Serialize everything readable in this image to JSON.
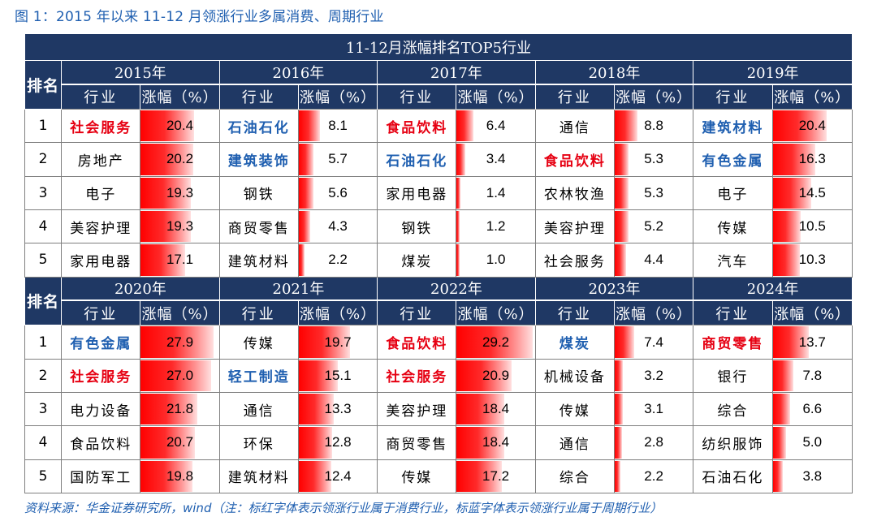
{
  "figure_title": "图 1：2015 年以来 11-12 月领涨行业多属消费、周期行业",
  "table_title": "11-12月涨幅排名TOP5行业",
  "rank_header": "排名",
  "col_industry": "行业",
  "col_change": "涨幅（%）",
  "bar_max": 30,
  "colors": {
    "header_bg": "#1f3864",
    "consumer": "#e60012",
    "cyclical": "#1f5fb0",
    "bar": "#ff0000"
  },
  "groups": [
    {
      "years": [
        {
          "year": "2015年",
          "rows": [
            {
              "rank": "1",
              "industry": "社会服务",
              "value": "20.4",
              "type": "red"
            },
            {
              "rank": "2",
              "industry": "房地产",
              "value": "20.2",
              "type": ""
            },
            {
              "rank": "3",
              "industry": "电子",
              "value": "19.3",
              "type": ""
            },
            {
              "rank": "4",
              "industry": "美容护理",
              "value": "19.3",
              "type": ""
            },
            {
              "rank": "5",
              "industry": "家用电器",
              "value": "17.1",
              "type": ""
            }
          ]
        },
        {
          "year": "2016年",
          "rows": [
            {
              "rank": "1",
              "industry": "石油石化",
              "value": "8.1",
              "type": "blue"
            },
            {
              "rank": "2",
              "industry": "建筑装饰",
              "value": "5.7",
              "type": "blue"
            },
            {
              "rank": "3",
              "industry": "钢铁",
              "value": "5.6",
              "type": ""
            },
            {
              "rank": "4",
              "industry": "商贸零售",
              "value": "4.3",
              "type": ""
            },
            {
              "rank": "5",
              "industry": "建筑材料",
              "value": "2.2",
              "type": ""
            }
          ]
        },
        {
          "year": "2017年",
          "rows": [
            {
              "rank": "1",
              "industry": "食品饮料",
              "value": "6.4",
              "type": "red"
            },
            {
              "rank": "2",
              "industry": "石油石化",
              "value": "3.4",
              "type": "blue"
            },
            {
              "rank": "3",
              "industry": "家用电器",
              "value": "1.4",
              "type": ""
            },
            {
              "rank": "4",
              "industry": "钢铁",
              "value": "1.2",
              "type": ""
            },
            {
              "rank": "5",
              "industry": "煤炭",
              "value": "1.0",
              "type": ""
            }
          ]
        },
        {
          "year": "2018年",
          "rows": [
            {
              "rank": "1",
              "industry": "通信",
              "value": "8.8",
              "type": ""
            },
            {
              "rank": "2",
              "industry": "食品饮料",
              "value": "5.3",
              "type": "red"
            },
            {
              "rank": "3",
              "industry": "农林牧渔",
              "value": "5.3",
              "type": ""
            },
            {
              "rank": "4",
              "industry": "美容护理",
              "value": "5.2",
              "type": ""
            },
            {
              "rank": "5",
              "industry": "社会服务",
              "value": "4.4",
              "type": ""
            }
          ]
        },
        {
          "year": "2019年",
          "rows": [
            {
              "rank": "1",
              "industry": "建筑材料",
              "value": "20.4",
              "type": "blue"
            },
            {
              "rank": "2",
              "industry": "有色金属",
              "value": "16.3",
              "type": "blue"
            },
            {
              "rank": "3",
              "industry": "电子",
              "value": "14.5",
              "type": ""
            },
            {
              "rank": "4",
              "industry": "传媒",
              "value": "10.5",
              "type": ""
            },
            {
              "rank": "5",
              "industry": "汽车",
              "value": "10.3",
              "type": ""
            }
          ]
        }
      ]
    },
    {
      "years": [
        {
          "year": "2020年",
          "rows": [
            {
              "rank": "1",
              "industry": "有色金属",
              "value": "27.9",
              "type": "blue"
            },
            {
              "rank": "2",
              "industry": "社会服务",
              "value": "27.0",
              "type": "red"
            },
            {
              "rank": "3",
              "industry": "电力设备",
              "value": "21.8",
              "type": ""
            },
            {
              "rank": "4",
              "industry": "食品饮料",
              "value": "20.7",
              "type": ""
            },
            {
              "rank": "5",
              "industry": "国防军工",
              "value": "19.8",
              "type": ""
            }
          ]
        },
        {
          "year": "2021年",
          "rows": [
            {
              "rank": "1",
              "industry": "传媒",
              "value": "19.7",
              "type": ""
            },
            {
              "rank": "2",
              "industry": "轻工制造",
              "value": "15.1",
              "type": "blue"
            },
            {
              "rank": "3",
              "industry": "通信",
              "value": "13.3",
              "type": ""
            },
            {
              "rank": "4",
              "industry": "环保",
              "value": "12.8",
              "type": ""
            },
            {
              "rank": "5",
              "industry": "建筑材料",
              "value": "12.4",
              "type": ""
            }
          ]
        },
        {
          "year": "2022年",
          "rows": [
            {
              "rank": "1",
              "industry": "食品饮料",
              "value": "29.2",
              "type": "red"
            },
            {
              "rank": "2",
              "industry": "社会服务",
              "value": "20.9",
              "type": "red"
            },
            {
              "rank": "3",
              "industry": "美容护理",
              "value": "18.4",
              "type": ""
            },
            {
              "rank": "4",
              "industry": "商贸零售",
              "value": "18.4",
              "type": ""
            },
            {
              "rank": "5",
              "industry": "传媒",
              "value": "17.2",
              "type": ""
            }
          ]
        },
        {
          "year": "2023年",
          "rows": [
            {
              "rank": "1",
              "industry": "煤炭",
              "value": "7.4",
              "type": "blue"
            },
            {
              "rank": "2",
              "industry": "机械设备",
              "value": "3.2",
              "type": ""
            },
            {
              "rank": "3",
              "industry": "传媒",
              "value": "3.1",
              "type": ""
            },
            {
              "rank": "4",
              "industry": "通信",
              "value": "2.8",
              "type": ""
            },
            {
              "rank": "5",
              "industry": "综合",
              "value": "2.2",
              "type": ""
            }
          ]
        },
        {
          "year": "2024年",
          "rows": [
            {
              "rank": "1",
              "industry": "商贸零售",
              "value": "13.7",
              "type": "red"
            },
            {
              "rank": "2",
              "industry": "银行",
              "value": "7.8",
              "type": ""
            },
            {
              "rank": "3",
              "industry": "综合",
              "value": "6.6",
              "type": ""
            },
            {
              "rank": "4",
              "industry": "纺织服饰",
              "value": "5.0",
              "type": ""
            },
            {
              "rank": "5",
              "industry": "石油石化",
              "value": "3.8",
              "type": ""
            }
          ]
        }
      ]
    }
  ],
  "source_note": "资料来源：华金证券研究所，wind（注：标红字体表示领涨行业属于消费行业，标蓝字体表示领涨行业属于周期行业）"
}
